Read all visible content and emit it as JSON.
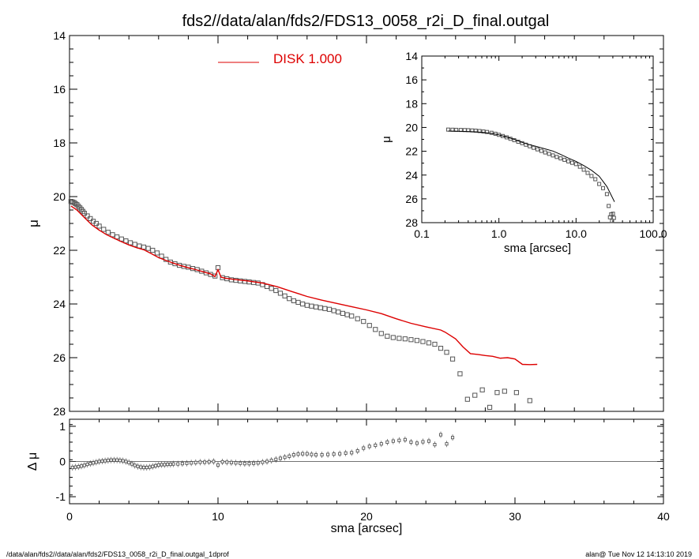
{
  "title": "fds2//data/alan/fds2/FDS13_0058_r2i_D_final.outgal",
  "footer_left": "/data/alan/fds2//data/alan/fds2/FDS13_0058_r2i_D_final.outgal_1dprof",
  "footer_right": "alan@  Tue Nov 12 14:13:10 2019",
  "colors": {
    "model": "#dd0000",
    "points": "#555555",
    "axes": "#000000"
  },
  "chart_data": [
    {
      "id": "main_profile",
      "type": "scatter",
      "ylabel": "μ",
      "xlabel": "",
      "xlim": [
        0,
        40
      ],
      "ylim": [
        28,
        14
      ],
      "x_ticks": [
        0,
        10,
        20,
        30,
        40
      ],
      "y_ticks": [
        14,
        16,
        18,
        20,
        22,
        24,
        26,
        28
      ],
      "y_tick_labels": [
        "14",
        "16",
        "18",
        "20",
        "22",
        "24",
        "26",
        "28"
      ],
      "legend": {
        "label": "DISK  1.000",
        "position": "top-center"
      },
      "series": [
        {
          "name": "data",
          "style": "open-squares",
          "x": [
            0.1,
            0.2,
            0.3,
            0.4,
            0.5,
            0.6,
            0.7,
            0.8,
            0.9,
            1.0,
            1.2,
            1.4,
            1.6,
            1.8,
            2.0,
            2.3,
            2.6,
            2.9,
            3.2,
            3.5,
            3.8,
            4.1,
            4.4,
            4.7,
            5.0,
            5.3,
            5.6,
            5.9,
            6.2,
            6.5,
            6.8,
            7.1,
            7.4,
            7.7,
            8.0,
            8.3,
            8.6,
            8.9,
            9.2,
            9.5,
            9.8,
            10.0,
            10.3,
            10.6,
            10.9,
            11.2,
            11.5,
            11.8,
            12.1,
            12.4,
            12.7,
            13.0,
            13.3,
            13.6,
            13.9,
            14.2,
            14.5,
            14.8,
            15.1,
            15.4,
            15.7,
            16.0,
            16.3,
            16.6,
            16.9,
            17.2,
            17.5,
            17.8,
            18.1,
            18.4,
            18.7,
            19.0,
            19.4,
            19.8,
            20.2,
            20.6,
            21.0,
            21.4,
            21.8,
            22.2,
            22.6,
            23.0,
            23.4,
            23.8,
            24.2,
            24.6,
            25.0,
            25.4,
            25.8,
            26.3,
            26.8,
            27.3,
            27.8,
            28.3,
            28.8,
            29.3,
            30.1,
            31.0
          ],
          "y": [
            20.18,
            20.2,
            20.22,
            20.26,
            20.3,
            20.36,
            20.42,
            20.48,
            20.55,
            20.62,
            20.72,
            20.82,
            20.92,
            21.0,
            21.1,
            21.22,
            21.33,
            21.42,
            21.5,
            21.58,
            21.65,
            21.72,
            21.78,
            21.84,
            21.88,
            21.93,
            22.0,
            22.1,
            22.22,
            22.34,
            22.44,
            22.5,
            22.56,
            22.6,
            22.63,
            22.68,
            22.72,
            22.78,
            22.84,
            22.9,
            22.96,
            22.65,
            23.02,
            23.06,
            23.1,
            23.12,
            23.14,
            23.16,
            23.18,
            23.2,
            23.22,
            23.28,
            23.35,
            23.42,
            23.5,
            23.6,
            23.7,
            23.8,
            23.88,
            23.94,
            24.0,
            24.05,
            24.08,
            24.11,
            24.14,
            24.17,
            24.2,
            24.25,
            24.3,
            24.35,
            24.4,
            24.45,
            24.55,
            24.65,
            24.8,
            24.95,
            25.1,
            25.2,
            25.25,
            25.28,
            25.3,
            25.33,
            25.36,
            25.4,
            25.45,
            25.5,
            25.65,
            25.8,
            26.05,
            26.6,
            27.55,
            27.4,
            27.2,
            27.85,
            27.3,
            27.25,
            27.3,
            27.6
          ]
        },
        {
          "name": "model",
          "style": "line",
          "x": [
            0.1,
            0.5,
            1.0,
            1.5,
            2.0,
            2.5,
            3.0,
            3.5,
            4.0,
            4.5,
            5.0,
            5.5,
            6.0,
            6.5,
            7.0,
            7.5,
            8.0,
            8.5,
            9.0,
            9.5,
            9.8,
            10.0,
            10.2,
            10.5,
            11.0,
            12.0,
            13.0,
            14.0,
            15.0,
            16.0,
            17.0,
            18.0,
            19.0,
            20.0,
            21.0,
            22.0,
            23.0,
            24.0,
            25.0,
            25.3,
            26.0,
            26.5,
            27.0,
            27.5,
            28.0,
            28.5,
            29.0,
            29.5,
            30.0,
            30.5,
            31.0,
            31.5
          ],
          "y": [
            20.35,
            20.5,
            20.78,
            21.05,
            21.25,
            21.42,
            21.55,
            21.68,
            21.8,
            21.9,
            21.98,
            22.12,
            22.27,
            22.38,
            22.48,
            22.57,
            22.65,
            22.72,
            22.8,
            22.88,
            22.98,
            22.72,
            23.0,
            23.04,
            23.08,
            23.14,
            23.22,
            23.36,
            23.54,
            23.72,
            23.86,
            23.98,
            24.1,
            24.22,
            24.36,
            24.55,
            24.72,
            24.85,
            24.97,
            25.05,
            25.3,
            25.6,
            25.85,
            25.88,
            25.92,
            25.95,
            26.02,
            26.0,
            26.05,
            26.25,
            26.26,
            26.25
          ]
        }
      ]
    },
    {
      "id": "residuals",
      "type": "scatter",
      "ylabel": "Δ μ",
      "xlabel": "sma [arcsec]",
      "xlim": [
        0,
        40
      ],
      "ylim": [
        -1.2,
        1.2
      ],
      "x_ticks": [
        0,
        10,
        20,
        30,
        40
      ],
      "x_tick_labels": [
        "0",
        "10",
        "20",
        "30",
        "40"
      ],
      "y_ticks": [
        -1,
        0,
        1
      ],
      "y_tick_labels": [
        "-1",
        "0",
        "1"
      ],
      "reference_line": 0,
      "series": [
        {
          "name": "residuals",
          "style": "points-with-errorbars",
          "x": [
            0.2,
            0.4,
            0.6,
            0.8,
            1.0,
            1.2,
            1.4,
            1.6,
            1.8,
            2.0,
            2.2,
            2.4,
            2.6,
            2.8,
            3.0,
            3.2,
            3.4,
            3.6,
            3.8,
            4.0,
            4.2,
            4.4,
            4.6,
            4.8,
            5.0,
            5.2,
            5.4,
            5.6,
            5.8,
            6.0,
            6.2,
            6.4,
            6.6,
            6.8,
            7.0,
            7.3,
            7.6,
            7.9,
            8.2,
            8.5,
            8.8,
            9.1,
            9.4,
            9.7,
            10.0,
            10.3,
            10.6,
            10.9,
            11.2,
            11.5,
            11.8,
            12.1,
            12.4,
            12.7,
            13.0,
            13.3,
            13.6,
            13.9,
            14.2,
            14.5,
            14.8,
            15.1,
            15.4,
            15.7,
            16.0,
            16.3,
            16.6,
            17.0,
            17.4,
            17.8,
            18.2,
            18.6,
            19.0,
            19.4,
            19.8,
            20.2,
            20.6,
            21.0,
            21.4,
            21.8,
            22.2,
            22.6,
            23.0,
            23.4,
            23.8,
            24.2,
            24.6,
            25.0,
            25.4,
            25.8
          ],
          "y": [
            -0.17,
            -0.16,
            -0.15,
            -0.13,
            -0.11,
            -0.08,
            -0.06,
            -0.04,
            -0.02,
            0.0,
            0.01,
            0.02,
            0.03,
            0.04,
            0.04,
            0.04,
            0.03,
            0.02,
            0.0,
            -0.03,
            -0.07,
            -0.11,
            -0.14,
            -0.16,
            -0.17,
            -0.17,
            -0.16,
            -0.14,
            -0.12,
            -0.1,
            -0.09,
            -0.09,
            -0.08,
            -0.08,
            -0.07,
            -0.07,
            -0.06,
            -0.05,
            -0.04,
            -0.03,
            -0.02,
            -0.02,
            -0.01,
            0.0,
            -0.1,
            -0.01,
            -0.02,
            -0.03,
            -0.04,
            -0.05,
            -0.06,
            -0.06,
            -0.05,
            -0.04,
            -0.02,
            0.0,
            0.03,
            0.06,
            0.09,
            0.12,
            0.15,
            0.19,
            0.21,
            0.22,
            0.22,
            0.2,
            0.19,
            0.19,
            0.2,
            0.21,
            0.22,
            0.24,
            0.25,
            0.3,
            0.38,
            0.43,
            0.46,
            0.5,
            0.55,
            0.58,
            0.6,
            0.62,
            0.55,
            0.52,
            0.56,
            0.58,
            0.48,
            0.76,
            0.5,
            0.68
          ]
        }
      ]
    },
    {
      "id": "inset_log",
      "type": "scatter",
      "ylabel": "μ",
      "xlabel": "sma [arcsec]",
      "xscale": "log",
      "xlim": [
        0.1,
        100
      ],
      "ylim": [
        28,
        14
      ],
      "x_ticks": [
        0.1,
        1,
        10,
        100
      ],
      "x_tick_labels": [
        "0.1",
        "1.0",
        "10.0",
        "100.0"
      ],
      "y_ticks": [
        14,
        16,
        18,
        20,
        22,
        24,
        26,
        28
      ],
      "y_tick_labels": [
        "14",
        "16",
        "18",
        "20",
        "22",
        "24",
        "26",
        "28"
      ],
      "series": [
        {
          "name": "data",
          "style": "open-squares",
          "x": [
            0.22,
            0.25,
            0.28,
            0.32,
            0.36,
            0.4,
            0.45,
            0.5,
            0.56,
            0.63,
            0.7,
            0.8,
            0.9,
            1.0,
            1.12,
            1.26,
            1.41,
            1.58,
            1.78,
            2.0,
            2.24,
            2.51,
            2.82,
            3.16,
            3.55,
            3.98,
            4.47,
            5.01,
            5.62,
            6.31,
            7.08,
            7.94,
            8.91,
            10.0,
            11.22,
            12.59,
            14.13,
            15.85,
            17.78,
            19.95,
            22.39,
            25.12,
            26.5,
            27.5,
            28.5,
            29.3,
            30.1,
            31.0
          ],
          "y": [
            20.18,
            20.19,
            20.2,
            20.21,
            20.22,
            20.23,
            20.25,
            20.27,
            20.3,
            20.34,
            20.38,
            20.45,
            20.53,
            20.62,
            20.72,
            20.83,
            20.95,
            21.07,
            21.2,
            21.32,
            21.45,
            21.58,
            21.71,
            21.84,
            21.97,
            22.1,
            22.22,
            22.35,
            22.48,
            22.6,
            22.72,
            22.85,
            22.97,
            23.08,
            23.3,
            23.55,
            23.82,
            24.08,
            24.35,
            24.75,
            25.1,
            25.6,
            26.6,
            27.55,
            27.3,
            27.85,
            27.25,
            27.6
          ]
        },
        {
          "name": "model",
          "style": "line",
          "x": [
            0.22,
            0.3,
            0.4,
            0.5,
            0.63,
            0.8,
            1.0,
            1.26,
            1.58,
            2.0,
            2.51,
            3.16,
            3.98,
            5.01,
            6.31,
            7.94,
            10.0,
            12.59,
            15.85,
            19.95,
            25.12,
            31.5
          ],
          "y": [
            20.3,
            20.32,
            20.34,
            20.37,
            20.42,
            20.5,
            20.62,
            20.8,
            21.0,
            21.25,
            21.45,
            21.62,
            21.8,
            21.98,
            22.27,
            22.57,
            22.85,
            23.2,
            23.6,
            24.1,
            24.97,
            26.25
          ]
        }
      ]
    }
  ]
}
